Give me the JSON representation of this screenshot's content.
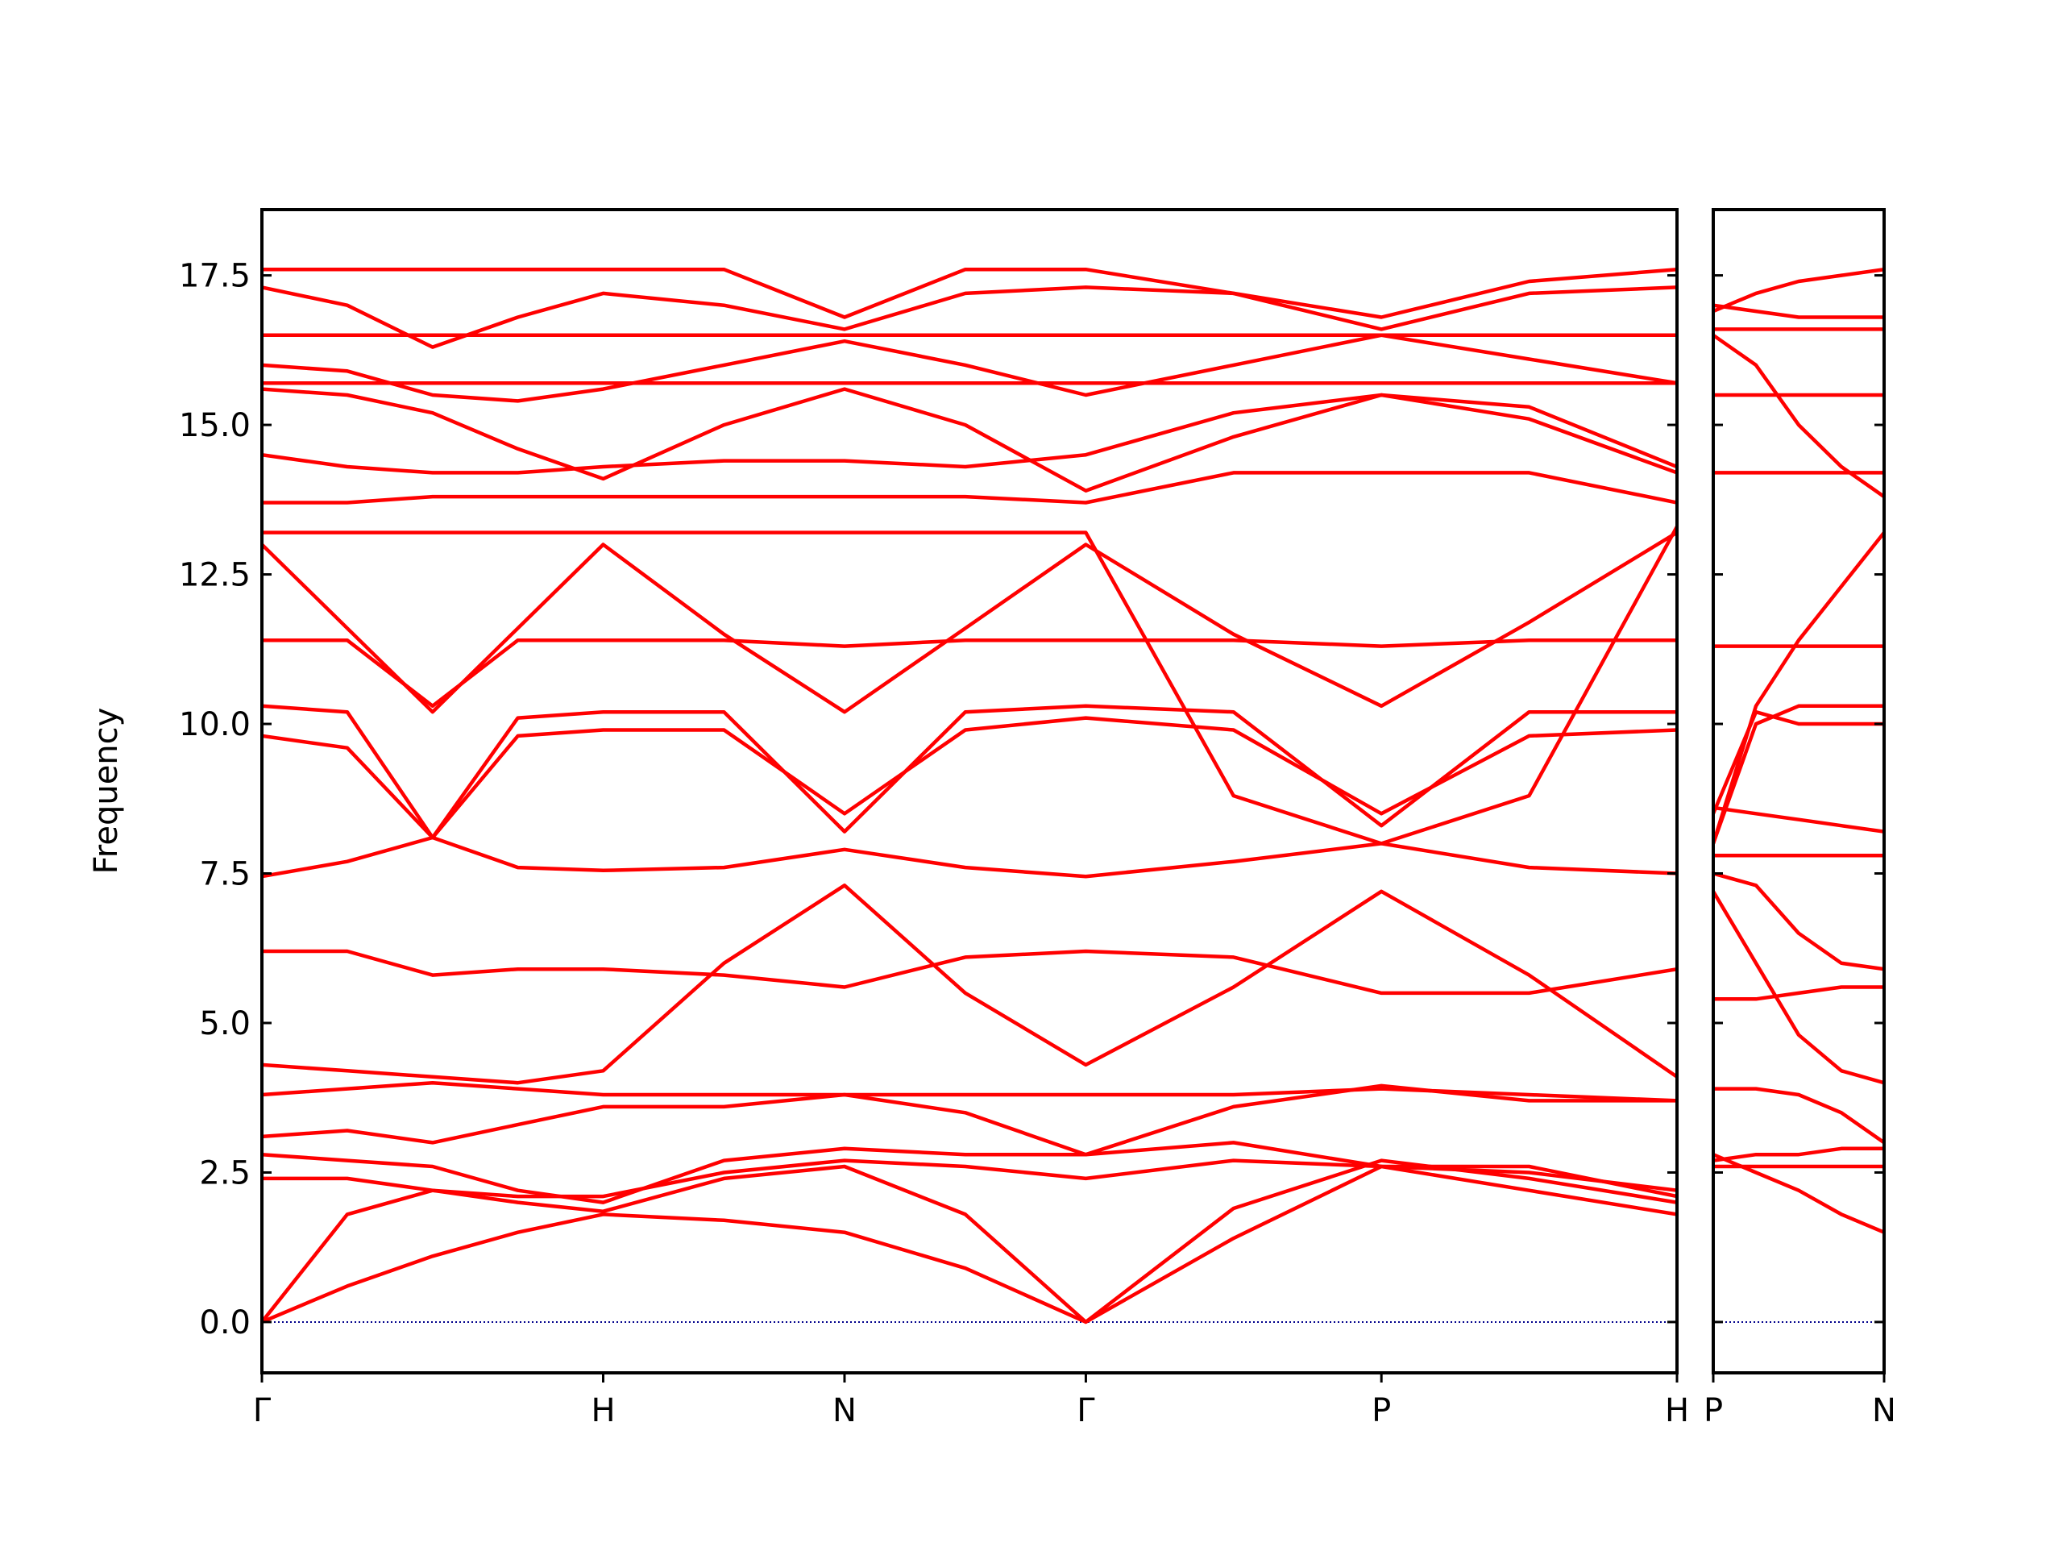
{
  "chart_data": [
    {
      "type": "line",
      "ylabel": "Frequency",
      "color": "#ff0000",
      "hline": {
        "value": 0,
        "color": "#00008b"
      },
      "xlim": [
        0,
        4.1463
      ],
      "ylim": [
        -0.85,
        18.6
      ],
      "xticks": [
        {
          "value": 0,
          "label": "Γ"
        },
        {
          "value": 1,
          "label": "H"
        },
        {
          "value": 1.7071,
          "label": "N"
        },
        {
          "value": 2.4142,
          "label": "Γ"
        },
        {
          "value": 3.2802,
          "label": "P"
        },
        {
          "value": 4.1463,
          "label": "H"
        }
      ],
      "yticks": [
        {
          "value": 0,
          "label": "0.0"
        },
        2.5,
        {
          "value": 5,
          "label": "5.0"
        },
        7.5,
        {
          "value": 10,
          "label": "10.0"
        },
        12.5,
        {
          "value": 15,
          "label": "15.0"
        },
        17.5
      ],
      "x": [
        0,
        0.25,
        0.5,
        0.75,
        1,
        1.354,
        1.7071,
        2.061,
        2.4142,
        2.847,
        3.2802,
        3.713,
        4.1463
      ],
      "series": [
        {
          "values": [
            0,
            0.6,
            1.1,
            1.5,
            1.8,
            1.7,
            1.5,
            0.9,
            0,
            1.4,
            2.6,
            2.2,
            1.8
          ]
        },
        {
          "values": [
            0,
            1.8,
            2.2,
            2.0,
            1.85,
            2.4,
            2.6,
            1.8,
            0,
            1.9,
            2.7,
            2.4,
            2.0
          ]
        },
        {
          "values": [
            2.4,
            2.4,
            2.2,
            2.1,
            2.1,
            2.5,
            2.7,
            2.6,
            2.4,
            2.7,
            2.6,
            2.6,
            2.1
          ]
        },
        {
          "values": [
            2.8,
            2.7,
            2.6,
            2.2,
            2.0,
            2.7,
            2.9,
            2.8,
            2.8,
            3.6,
            3.95,
            3.7,
            3.7
          ]
        },
        {
          "values": [
            3.1,
            3.2,
            3.0,
            3.3,
            3.6,
            3.6,
            3.8,
            3.5,
            2.8,
            3.0,
            2.6,
            2.5,
            2.2
          ]
        },
        {
          "values": [
            3.8,
            3.9,
            4.0,
            3.9,
            3.8,
            3.8,
            3.8,
            3.8,
            3.8,
            3.8,
            3.9,
            3.8,
            3.7
          ]
        },
        {
          "values": [
            4.3,
            4.2,
            4.1,
            4.0,
            4.2,
            6.0,
            7.3,
            5.5,
            4.3,
            5.6,
            7.2,
            5.8,
            4.1
          ]
        },
        {
          "values": [
            6.2,
            6.2,
            5.8,
            5.9,
            5.9,
            5.8,
            5.6,
            6.1,
            6.2,
            6.1,
            5.5,
            5.5,
            5.9
          ]
        },
        {
          "values": [
            7.45,
            7.7,
            8.1,
            7.6,
            7.55,
            7.6,
            7.9,
            7.6,
            7.45,
            7.7,
            8.0,
            7.6,
            7.5
          ]
        },
        {
          "values": [
            9.8,
            9.6,
            8.1,
            9.8,
            9.9,
            9.9,
            8.5,
            9.9,
            10.1,
            9.9,
            8.5,
            9.8,
            9.9
          ]
        },
        {
          "values": [
            10.3,
            10.2,
            8.1,
            10.1,
            10.2,
            10.2,
            8.2,
            10.2,
            10.3,
            10.2,
            8.3,
            10.2,
            10.2
          ]
        },
        {
          "values": [
            11.4,
            11.4,
            10.3,
            11.4,
            11.4,
            11.4,
            11.3,
            11.4,
            11.4,
            11.4,
            11.3,
            11.4,
            11.4
          ]
        },
        {
          "values": [
            13.0,
            11.6,
            10.2,
            11.6,
            13.0,
            11.5,
            10.2,
            11.6,
            13.0,
            11.5,
            10.3,
            11.7,
            13.2
          ]
        },
        {
          "values": [
            13.2,
            13.2,
            13.2,
            13.2,
            13.2,
            13.2,
            13.2,
            13.2,
            13.2,
            8.8,
            8.0,
            8.8,
            13.3
          ]
        },
        {
          "values": [
            13.7,
            13.7,
            13.8,
            13.8,
            13.8,
            13.8,
            13.8,
            13.8,
            13.7,
            14.2,
            14.2,
            14.2,
            13.7
          ]
        },
        {
          "values": [
            14.5,
            14.3,
            14.2,
            14.2,
            14.3,
            14.4,
            14.4,
            14.3,
            14.5,
            15.2,
            15.5,
            15.3,
            14.3
          ]
        },
        {
          "values": [
            15.6,
            15.5,
            15.2,
            14.6,
            14.1,
            15.0,
            15.6,
            15.0,
            13.9,
            14.8,
            15.5,
            15.1,
            14.2
          ]
        },
        {
          "values": [
            15.7,
            15.7,
            15.7,
            15.7,
            15.7,
            15.7,
            15.7,
            15.7,
            15.7,
            15.7,
            15.7,
            15.7,
            15.7
          ]
        },
        {
          "values": [
            16.0,
            15.9,
            15.5,
            15.4,
            15.6,
            16.0,
            16.4,
            16.0,
            15.5,
            16.0,
            16.5,
            16.1,
            15.7
          ]
        },
        {
          "values": [
            16.5,
            16.5,
            16.5,
            16.5,
            16.5,
            16.5,
            16.5,
            16.5,
            16.5,
            16.5,
            16.5,
            16.5,
            16.5
          ]
        },
        {
          "values": [
            17.3,
            17.0,
            16.3,
            16.8,
            17.2,
            17.0,
            16.6,
            17.2,
            17.3,
            17.2,
            16.6,
            17.2,
            17.3
          ]
        },
        {
          "values": [
            17.6,
            17.6,
            17.6,
            17.6,
            17.6,
            17.6,
            16.8,
            17.6,
            17.6,
            17.2,
            16.8,
            17.4,
            17.6
          ]
        }
      ]
    },
    {
      "type": "line",
      "color": "#ff0000",
      "ytick_labels": false,
      "hline": {
        "value": 0,
        "color": "#00008b"
      },
      "xlim": [
        0,
        0.5
      ],
      "ylim": [
        -0.85,
        18.6
      ],
      "xticks": [
        {
          "value": 0,
          "label": "P"
        },
        {
          "value": 0.5,
          "label": "N"
        }
      ],
      "yticks": [
        0,
        2.5,
        5,
        7.5,
        10,
        12.5,
        15,
        17.5
      ],
      "x": [
        0,
        0.125,
        0.25,
        0.375,
        0.5
      ],
      "series": [
        {
          "values": [
            2.6,
            2.6,
            2.6,
            2.6,
            2.6
          ]
        },
        {
          "values": [
            2.8,
            2.5,
            2.2,
            1.8,
            1.5
          ]
        },
        {
          "values": [
            2.7,
            2.8,
            2.8,
            2.9,
            2.9
          ]
        },
        {
          "values": [
            3.9,
            3.9,
            3.8,
            3.5,
            3.0
          ]
        },
        {
          "values": [
            7.2,
            6.0,
            4.8,
            4.2,
            4.0
          ]
        },
        {
          "values": [
            5.4,
            5.4,
            5.5,
            5.6,
            5.6
          ]
        },
        {
          "values": [
            7.5,
            7.3,
            6.5,
            6.0,
            5.9
          ]
        },
        {
          "values": [
            7.8,
            7.8,
            7.8,
            7.8,
            7.8
          ]
        },
        {
          "values": [
            8.6,
            8.5,
            8.4,
            8.3,
            8.2
          ]
        },
        {
          "values": [
            8.5,
            10.2,
            10.0,
            10.0,
            10.0
          ]
        },
        {
          "values": [
            8.0,
            10.0,
            10.3,
            10.3,
            10.3
          ]
        },
        {
          "values": [
            8.0,
            10.3,
            11.4,
            12.3,
            13.2
          ]
        },
        {
          "values": [
            11.3,
            11.3,
            11.3,
            11.3,
            11.3
          ]
        },
        {
          "values": [
            14.2,
            14.2,
            14.2,
            14.2,
            14.2
          ]
        },
        {
          "values": [
            15.5,
            15.5,
            15.5,
            15.5,
            15.5
          ]
        },
        {
          "values": [
            16.5,
            16.0,
            15.0,
            14.3,
            13.8
          ]
        },
        {
          "values": [
            16.6,
            16.6,
            16.6,
            16.6,
            16.6
          ]
        },
        {
          "values": [
            16.9,
            17.2,
            17.4,
            17.5,
            17.6
          ]
        },
        {
          "values": [
            17.0,
            16.9,
            16.8,
            16.8,
            16.8
          ]
        }
      ]
    }
  ]
}
